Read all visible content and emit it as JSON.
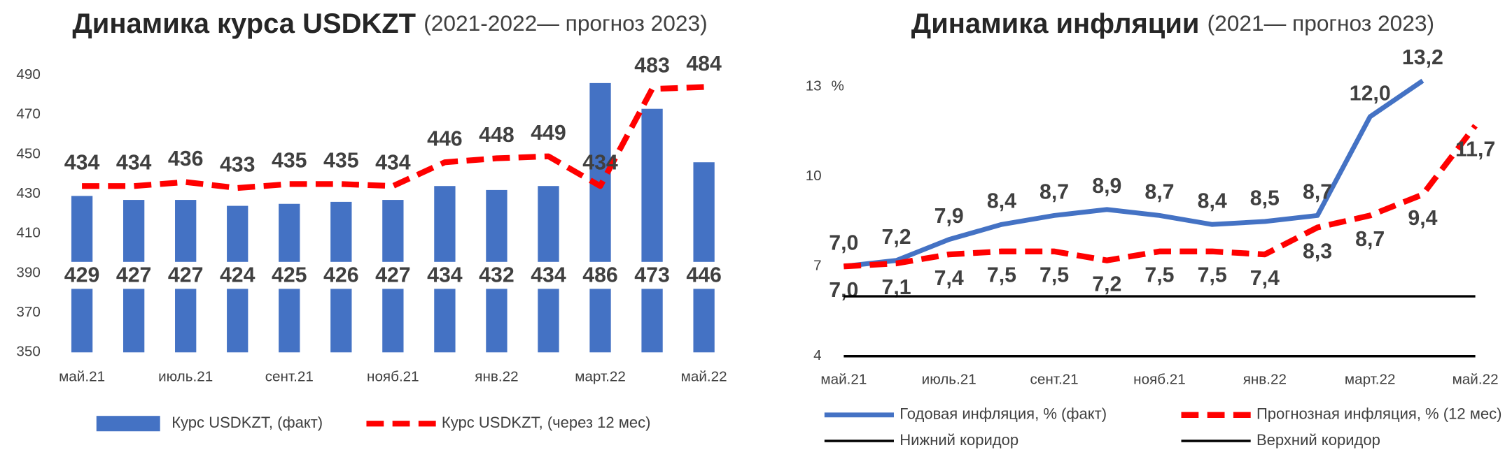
{
  "chart_data": [
    {
      "type": "bar",
      "title": "Динамика курса USDKZT",
      "subtitle": "(2021-2022— прогноз 2023)",
      "categories": [
        "май.21",
        null,
        "июль.21",
        null,
        "сент.21",
        null,
        "нояб.21",
        null,
        "янв.22",
        null,
        "март.22",
        null,
        "май.22"
      ],
      "series": [
        {
          "name": "Курс USDKZT, (факт)",
          "type": "bar",
          "color": "#4472c4",
          "values": [
            429,
            427,
            427,
            424,
            425,
            426,
            427,
            434,
            432,
            434,
            486,
            473,
            446
          ]
        },
        {
          "name": "Курс USDKZT, (через 12 мес)",
          "type": "line",
          "dash": true,
          "color": "#ff0000",
          "values": [
            434,
            434,
            436,
            433,
            435,
            435,
            434,
            446,
            448,
            449,
            434,
            483,
            484
          ]
        }
      ],
      "ylim": [
        350,
        490
      ],
      "yticks": [
        350,
        370,
        390,
        410,
        430,
        450,
        470,
        490
      ],
      "grid": false
    },
    {
      "type": "line",
      "title": "Динамика инфляции",
      "subtitle": "(2021— прогноз 2023)",
      "y_label": "%",
      "categories": [
        "май.21",
        null,
        "июль.21",
        null,
        "сент.21",
        null,
        "нояб.21",
        null,
        "янв.22",
        null,
        "март.22",
        null,
        "май.22"
      ],
      "series": [
        {
          "name": "Годовая инфляция, % (факт)",
          "type": "line",
          "color": "#4472c4",
          "label_side": "above",
          "values": [
            7.0,
            7.2,
            7.9,
            8.4,
            8.7,
            8.9,
            8.7,
            8.4,
            8.5,
            8.7,
            12.0,
            13.2,
            null
          ],
          "value_labels": [
            "7,0",
            "7,2",
            "7,9",
            "8,4",
            "8,7",
            "8,9",
            "8,7",
            "8,4",
            "8,5",
            "8,7",
            "12,0",
            "13,2",
            null
          ]
        },
        {
          "name": "Прогнозная инфляция, % (12 мес)",
          "type": "line",
          "dash": true,
          "color": "#ff0000",
          "label_side": "below",
          "values": [
            7.0,
            7.1,
            7.4,
            7.5,
            7.5,
            7.2,
            7.5,
            7.5,
            7.4,
            8.3,
            8.7,
            9.4,
            11.7
          ],
          "value_labels": [
            "7,0",
            "7,1",
            "7,4",
            "7,5",
            "7,5",
            "7,2",
            "7,5",
            "7,5",
            "7,4",
            "8,3",
            "8,7",
            "9,4",
            "11,7"
          ]
        },
        {
          "name": "Нижний коридор",
          "type": "line",
          "color": "#000000",
          "values": [
            4,
            4,
            4,
            4,
            4,
            4,
            4,
            4,
            4,
            4,
            4,
            4,
            4
          ]
        },
        {
          "name": "Верхний коридор",
          "type": "line",
          "color": "#000000",
          "values": [
            6,
            6,
            6,
            6,
            6,
            6,
            6,
            6,
            6,
            6,
            6,
            6,
            6
          ]
        }
      ],
      "ylim": [
        4,
        13.5
      ],
      "yticks": [
        4,
        7,
        10,
        13
      ],
      "grid": false
    }
  ]
}
